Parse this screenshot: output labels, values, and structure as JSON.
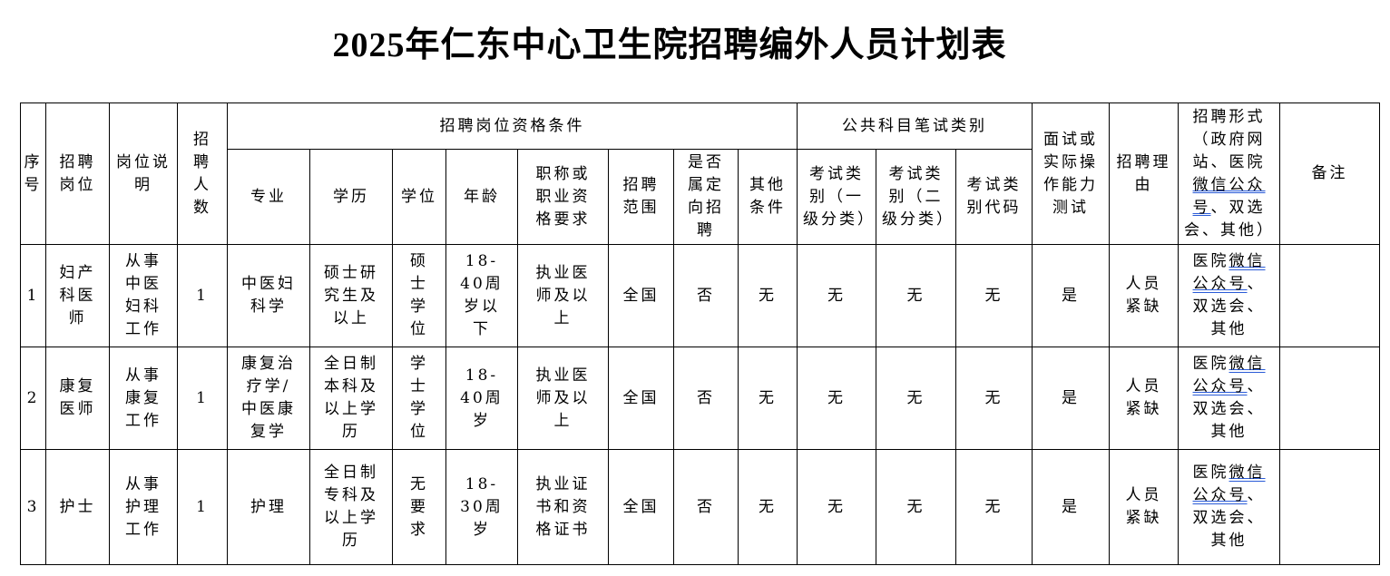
{
  "title": "2025年仁东中心卫生院招聘编外人员计划表",
  "headers": {
    "seq": "序号",
    "position": "招聘岗位",
    "desc": "岗位说明",
    "count": "招聘人数",
    "qualification": "招聘岗位资格条件",
    "major": "专业",
    "education": "学历",
    "degree": "学位",
    "age": "年龄",
    "title_req": "职称或职业资格要求",
    "scope": "招聘范围",
    "targeted": "是否属定向招聘",
    "other": "其他条件",
    "exam": "公共科目笔试类别",
    "exam_l1": "考试类别（一级分类）",
    "exam_l2": "考试类别（二级分类）",
    "exam_code": "考试类别代码",
    "interview": "面试或实际操作能力测试",
    "reason": "招聘理由",
    "form": {
      "pre": "招聘形式（政府网站、医院",
      "link": "微信公众号",
      "post": "、双选会、其他）"
    },
    "remark": "备注"
  },
  "rows": [
    {
      "seq": "1",
      "position": "妇产科医师",
      "desc": "从事中医妇科工作",
      "count": "1",
      "major": "中医妇科学",
      "education": "硕士研究生及以上",
      "degree": "硕士学位",
      "age": "18-40周岁以下",
      "title_req": "执业医师及以上",
      "scope": "全国",
      "targeted": "否",
      "other": "无",
      "exam_l1": "无",
      "exam_l2": "无",
      "exam_code": "无",
      "interview": "是",
      "reason": "人员紧缺",
      "form": {
        "pre": "医院",
        "link": "微信公众号",
        "post": "、双选会、其他"
      },
      "remark": ""
    },
    {
      "seq": "2",
      "position": "康复医师",
      "desc": "从事康复工作",
      "count": "1",
      "major": "康复治疗学/中医康复学",
      "education": "全日制本科及以上学历",
      "degree": "学士学位",
      "age": "18-40周岁",
      "title_req": "执业医师及以上",
      "scope": "全国",
      "targeted": "否",
      "other": "无",
      "exam_l1": "无",
      "exam_l2": "无",
      "exam_code": "无",
      "interview": "是",
      "reason": "人员紧缺",
      "form": {
        "pre": "医院",
        "link": "微信公众号",
        "post": "、双选会、其他"
      },
      "remark": ""
    },
    {
      "seq": "3",
      "position": "护士",
      "desc": "从事护理工作",
      "count": "1",
      "major": "护理",
      "education": "全日制专科及以上学历",
      "degree": "无要求",
      "age": "18-30周岁",
      "title_req": "执业证书和资格证书",
      "scope": "全国",
      "targeted": "否",
      "other": "无",
      "exam_l1": "无",
      "exam_l2": "无",
      "exam_code": "无",
      "interview": "是",
      "reason": "人员紧缺",
      "form": {
        "pre": "医院",
        "link": "微信公众号",
        "post": "、双选会、其他"
      },
      "remark": ""
    }
  ]
}
